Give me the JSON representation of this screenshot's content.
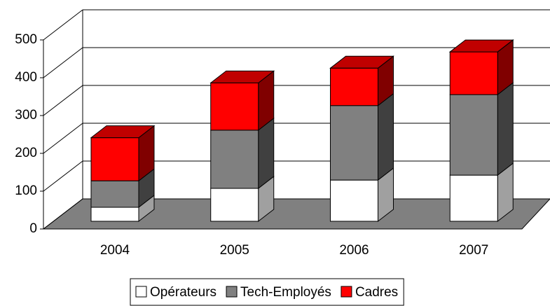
{
  "chart_data": {
    "type": "bar3d_stacked",
    "categories": [
      "2004",
      "2005",
      "2006",
      "2007"
    ],
    "series": [
      {
        "name": "Opérateurs",
        "color": "#ffffff",
        "values": [
          37,
          87,
          109,
          122
        ]
      },
      {
        "name": "Tech-Employés",
        "color": "#808080",
        "values": [
          70,
          154,
          197,
          213
        ]
      },
      {
        "name": "Cadres",
        "color": "#ff0000",
        "values": [
          114,
          125,
          99,
          113
        ]
      }
    ],
    "ylim": [
      0,
      500
    ],
    "yticks": [
      0,
      100,
      200,
      300,
      400,
      500
    ],
    "grid": true,
    "legend": "bottom"
  }
}
